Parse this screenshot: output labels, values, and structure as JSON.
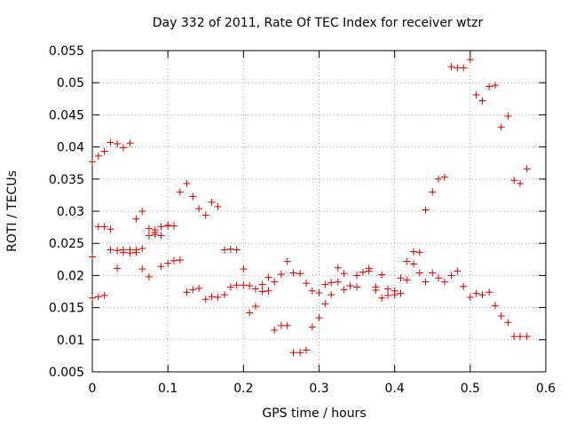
{
  "chart_data": {
    "type": "scatter",
    "title": "Day 332 of 2011, Rate Of TEC Index for receiver wtzr",
    "xlabel": "GPS time / hours",
    "ylabel": "ROTI / TECUs",
    "xlim": [
      0,
      0.6
    ],
    "ylim": [
      0.005,
      0.055
    ],
    "xticks": [
      0,
      0.1,
      0.2,
      0.3,
      0.4,
      0.5,
      0.6
    ],
    "xtick_labels": [
      "0",
      "0.1",
      "0.2",
      "0.3",
      "0.4",
      "0.5",
      "0.6"
    ],
    "yticks": [
      0.005,
      0.01,
      0.015,
      0.02,
      0.025,
      0.03,
      0.035,
      0.04,
      0.045,
      0.05,
      0.055
    ],
    "ytick_labels": [
      "0.005",
      "0.01",
      "0.015",
      "0.02",
      "0.025",
      "0.03",
      "0.035",
      "0.04",
      "0.045",
      "0.05",
      "0.055"
    ],
    "grid": true,
    "marker": "plus",
    "color": "#cc0000",
    "series": [
      {
        "name": "wtzr",
        "points": [
          [
            0.0,
            0.0377
          ],
          [
            0.0,
            0.0229
          ],
          [
            0.0,
            0.0165
          ],
          [
            0.008,
            0.0386
          ],
          [
            0.008,
            0.0276
          ],
          [
            0.008,
            0.0167
          ],
          [
            0.016,
            0.0393
          ],
          [
            0.016,
            0.0276
          ],
          [
            0.016,
            0.0169
          ],
          [
            0.024,
            0.0407
          ],
          [
            0.024,
            0.0272
          ],
          [
            0.024,
            0.024
          ],
          [
            0.033,
            0.0405
          ],
          [
            0.033,
            0.0239
          ],
          [
            0.033,
            0.0211
          ],
          [
            0.041,
            0.0399
          ],
          [
            0.041,
            0.024
          ],
          [
            0.041,
            0.0236
          ],
          [
            0.05,
            0.0406
          ],
          [
            0.05,
            0.024
          ],
          [
            0.05,
            0.0235
          ],
          [
            0.058,
            0.0288
          ],
          [
            0.058,
            0.024
          ],
          [
            0.058,
            0.0236
          ],
          [
            0.066,
            0.03
          ],
          [
            0.066,
            0.0242
          ],
          [
            0.066,
            0.021
          ],
          [
            0.075,
            0.0273
          ],
          [
            0.075,
            0.0262
          ],
          [
            0.075,
            0.0198
          ],
          [
            0.083,
            0.0271
          ],
          [
            0.083,
            0.0267
          ],
          [
            0.083,
            0.0264
          ],
          [
            0.091,
            0.0276
          ],
          [
            0.091,
            0.0262
          ],
          [
            0.091,
            0.0214
          ],
          [
            0.1,
            0.0278
          ],
          [
            0.1,
            0.0277
          ],
          [
            0.1,
            0.0219
          ],
          [
            0.108,
            0.0277
          ],
          [
            0.108,
            0.0223
          ],
          [
            0.116,
            0.033
          ],
          [
            0.116,
            0.0224
          ],
          [
            0.125,
            0.0343
          ],
          [
            0.125,
            0.0174
          ],
          [
            0.133,
            0.0323
          ],
          [
            0.133,
            0.0178
          ],
          [
            0.141,
            0.0304
          ],
          [
            0.141,
            0.018
          ],
          [
            0.15,
            0.0294
          ],
          [
            0.15,
            0.0163
          ],
          [
            0.158,
            0.0314
          ],
          [
            0.158,
            0.0167
          ],
          [
            0.166,
            0.0307
          ],
          [
            0.166,
            0.0166
          ],
          [
            0.175,
            0.024
          ],
          [
            0.175,
            0.017
          ],
          [
            0.183,
            0.0241
          ],
          [
            0.183,
            0.0182
          ],
          [
            0.191,
            0.024
          ],
          [
            0.191,
            0.0185
          ],
          [
            0.2,
            0.021
          ],
          [
            0.2,
            0.0185
          ],
          [
            0.208,
            0.0184
          ],
          [
            0.208,
            0.0142
          ],
          [
            0.216,
            0.0179
          ],
          [
            0.216,
            0.0152
          ],
          [
            0.225,
            0.0186
          ],
          [
            0.225,
            0.0175
          ],
          [
            0.233,
            0.0197
          ],
          [
            0.233,
            0.0176
          ],
          [
            0.241,
            0.019
          ],
          [
            0.241,
            0.0115
          ],
          [
            0.25,
            0.0202
          ],
          [
            0.25,
            0.0122
          ],
          [
            0.258,
            0.0222
          ],
          [
            0.258,
            0.0122
          ],
          [
            0.266,
            0.0204
          ],
          [
            0.266,
            0.008
          ],
          [
            0.275,
            0.0203
          ],
          [
            0.275,
            0.008
          ],
          [
            0.283,
            0.0188
          ],
          [
            0.283,
            0.0084
          ],
          [
            0.291,
            0.0176
          ],
          [
            0.291,
            0.012
          ],
          [
            0.3,
            0.0173
          ],
          [
            0.3,
            0.0134
          ],
          [
            0.308,
            0.0186
          ],
          [
            0.308,
            0.0156
          ],
          [
            0.316,
            0.0189
          ],
          [
            0.316,
            0.017
          ],
          [
            0.325,
            0.0212
          ],
          [
            0.325,
            0.019
          ],
          [
            0.333,
            0.0203
          ],
          [
            0.333,
            0.0178
          ],
          [
            0.341,
            0.0184
          ],
          [
            0.35,
            0.02
          ],
          [
            0.35,
            0.0182
          ],
          [
            0.358,
            0.0205
          ],
          [
            0.366,
            0.0211
          ],
          [
            0.366,
            0.0207
          ],
          [
            0.375,
            0.0182
          ],
          [
            0.375,
            0.0177
          ],
          [
            0.383,
            0.0201
          ],
          [
            0.383,
            0.0165
          ],
          [
            0.391,
            0.0179
          ],
          [
            0.391,
            0.0169
          ],
          [
            0.4,
            0.0176
          ],
          [
            0.4,
            0.017
          ],
          [
            0.408,
            0.0196
          ],
          [
            0.408,
            0.0172
          ],
          [
            0.416,
            0.0222
          ],
          [
            0.416,
            0.0193
          ],
          [
            0.425,
            0.0237
          ],
          [
            0.425,
            0.0218
          ],
          [
            0.433,
            0.0236
          ],
          [
            0.433,
            0.0204
          ],
          [
            0.441,
            0.0302
          ],
          [
            0.441,
            0.019
          ],
          [
            0.45,
            0.033
          ],
          [
            0.45,
            0.0204
          ],
          [
            0.458,
            0.035
          ],
          [
            0.458,
            0.0196
          ],
          [
            0.466,
            0.0353
          ],
          [
            0.466,
            0.019
          ],
          [
            0.475,
            0.0525
          ],
          [
            0.475,
            0.02
          ],
          [
            0.483,
            0.0523
          ],
          [
            0.483,
            0.0207
          ],
          [
            0.491,
            0.0523
          ],
          [
            0.491,
            0.0183
          ],
          [
            0.5,
            0.0536
          ],
          [
            0.5,
            0.0166
          ],
          [
            0.508,
            0.0481
          ],
          [
            0.508,
            0.0172
          ],
          [
            0.516,
            0.0472
          ],
          [
            0.516,
            0.017
          ],
          [
            0.525,
            0.0494
          ],
          [
            0.525,
            0.0174
          ],
          [
            0.533,
            0.0496
          ],
          [
            0.533,
            0.0153
          ],
          [
            0.541,
            0.0431
          ],
          [
            0.541,
            0.0137
          ],
          [
            0.55,
            0.0448
          ],
          [
            0.55,
            0.0127
          ],
          [
            0.558,
            0.0348
          ],
          [
            0.558,
            0.0105
          ],
          [
            0.566,
            0.0343
          ],
          [
            0.566,
            0.0105
          ],
          [
            0.575,
            0.0366
          ],
          [
            0.575,
            0.0105
          ]
        ]
      }
    ]
  }
}
